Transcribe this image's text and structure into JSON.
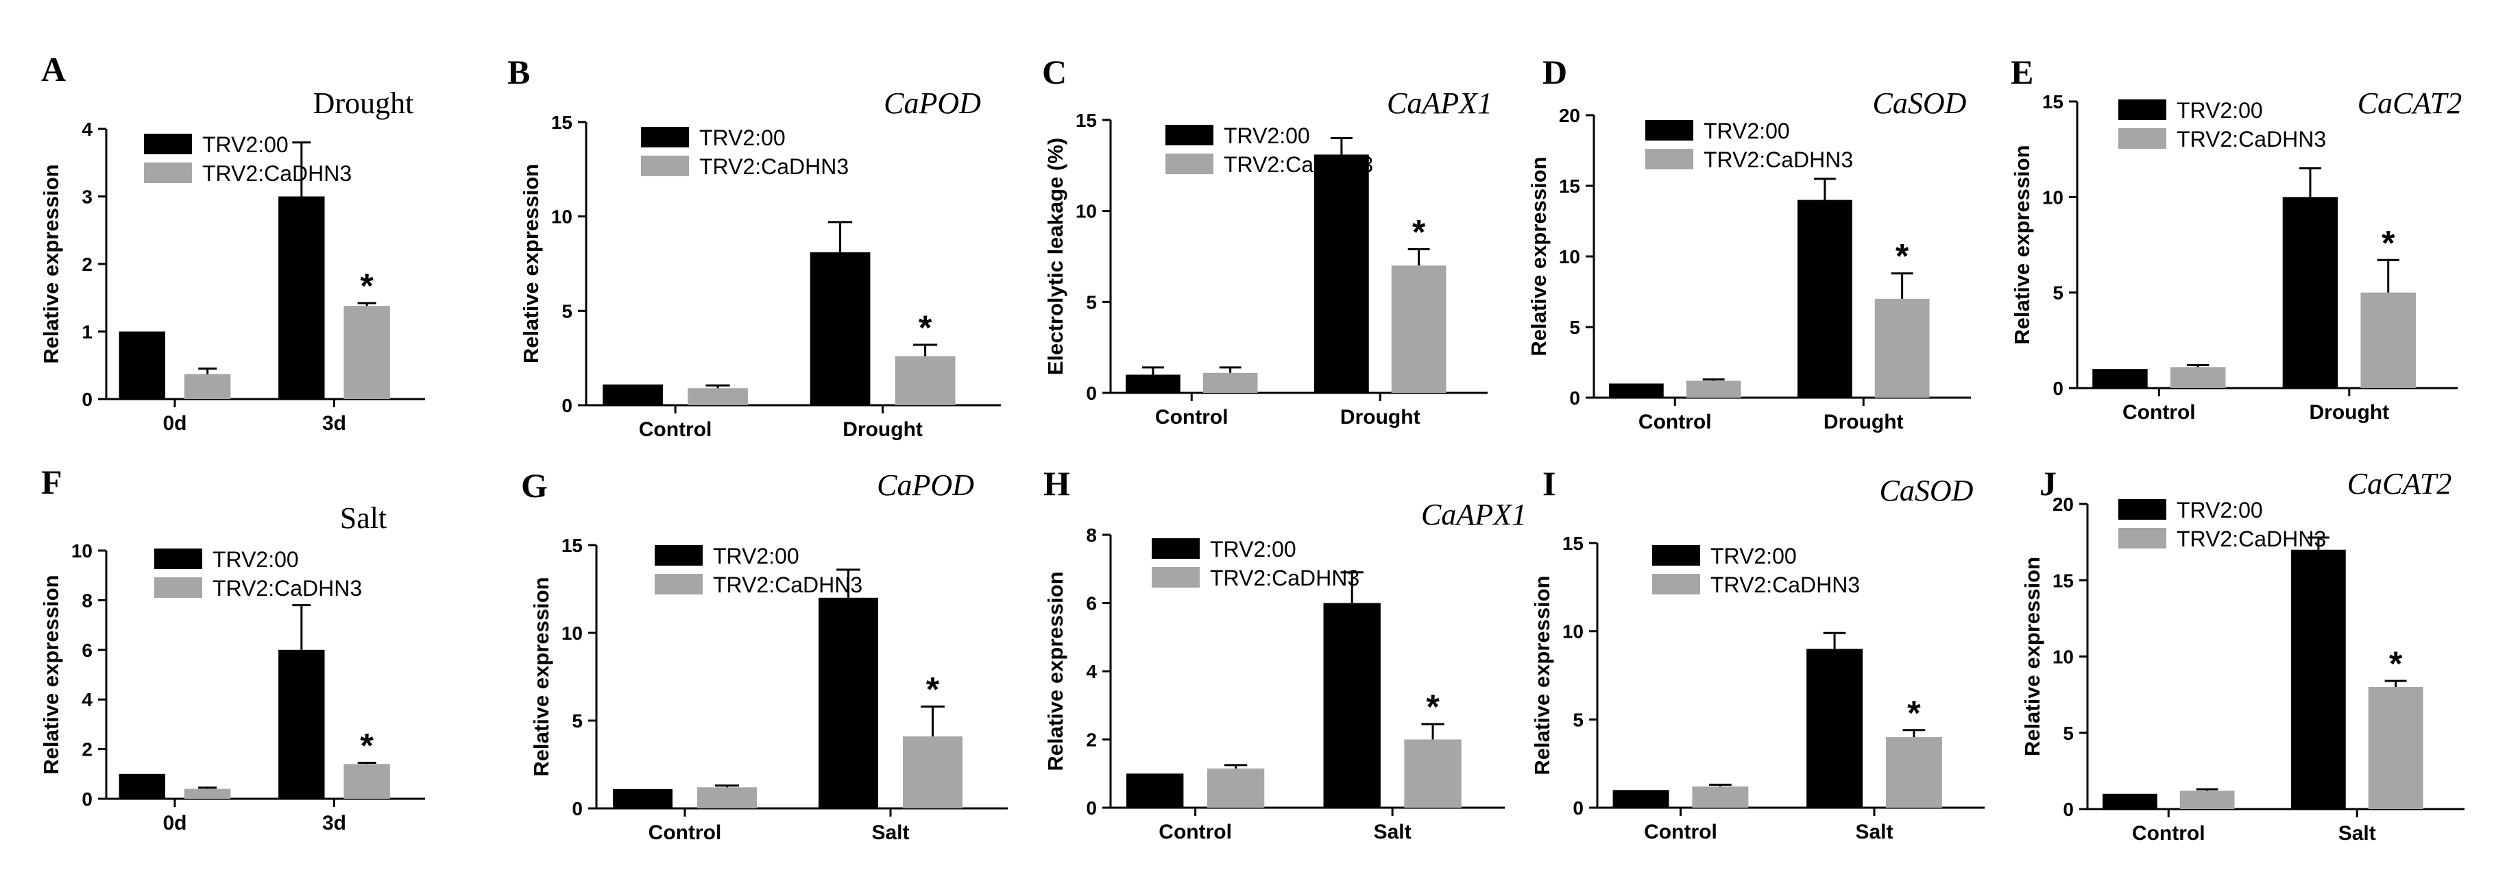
{
  "colors": {
    "series1": "#000000",
    "series2": "#a6a6a6"
  },
  "chart_data": [
    {
      "type": "bar",
      "panel": "A",
      "title": "Drought",
      "title_italic": false,
      "ylabel": "Relative expression",
      "ylim": [
        0,
        4
      ],
      "yticks": [
        0,
        1,
        2,
        3,
        4
      ],
      "categories": [
        "0d",
        "3d"
      ],
      "series": [
        {
          "name": "TRV2:00",
          "values": [
            1.0,
            3.0
          ],
          "errors": [
            0,
            0.8
          ]
        },
        {
          "name": "TRV2:CaDHN3",
          "values": [
            0.37,
            1.38
          ],
          "errors": [
            0.08,
            0.04
          ]
        }
      ],
      "annotations": [
        "",
        "*"
      ],
      "legend": "top-left"
    },
    {
      "type": "bar",
      "panel": "B",
      "title": "CaPOD",
      "title_italic": true,
      "ylabel": "Relative expression",
      "ylim": [
        0,
        15
      ],
      "yticks": [
        0,
        5,
        10,
        15
      ],
      "categories": [
        "Control",
        "Drought"
      ],
      "series": [
        {
          "name": "TRV2:00",
          "values": [
            1.1,
            8.1
          ],
          "errors": [
            0,
            1.6
          ]
        },
        {
          "name": "TRV2:CaDHN3",
          "values": [
            0.9,
            2.6
          ],
          "errors": [
            0.15,
            0.6
          ]
        }
      ],
      "annotations": [
        "",
        "*"
      ],
      "legend": "top-left"
    },
    {
      "type": "bar",
      "panel": "C",
      "title": "CaAPX1",
      "title_italic": true,
      "ylabel": "Electrolytic leakage (%)",
      "ylim": [
        0,
        15
      ],
      "yticks": [
        0,
        5,
        10,
        15
      ],
      "categories": [
        "Control",
        "Drought"
      ],
      "series": [
        {
          "name": "TRV2:00",
          "values": [
            1.0,
            13.1
          ],
          "errors": [
            0.4,
            0.9
          ]
        },
        {
          "name": "TRV2:CaDHN3",
          "values": [
            1.1,
            7.0
          ],
          "errors": [
            0.3,
            0.9
          ]
        }
      ],
      "annotations": [
        "",
        "*"
      ],
      "legend": "top-left"
    },
    {
      "type": "bar",
      "panel": "D",
      "title": "CaSOD",
      "title_italic": true,
      "ylabel": "Relative expression",
      "ylim": [
        0,
        20
      ],
      "yticks": [
        0,
        5,
        10,
        15,
        20
      ],
      "categories": [
        "Control",
        "Drought"
      ],
      "series": [
        {
          "name": "TRV2:00",
          "values": [
            1.0,
            14.0
          ],
          "errors": [
            0,
            1.5
          ]
        },
        {
          "name": "TRV2:CaDHN3",
          "values": [
            1.2,
            7.0
          ],
          "errors": [
            0.1,
            1.8
          ]
        }
      ],
      "annotations": [
        "",
        "*"
      ],
      "legend": "top-left"
    },
    {
      "type": "bar",
      "panel": "E",
      "title": "CaCAT2",
      "title_italic": true,
      "ylabel": "Relative expression",
      "ylim": [
        0,
        15
      ],
      "yticks": [
        0,
        5,
        10,
        15
      ],
      "categories": [
        "Control",
        "Drought"
      ],
      "series": [
        {
          "name": "TRV2:00",
          "values": [
            1.0,
            10.0
          ],
          "errors": [
            0,
            1.5
          ]
        },
        {
          "name": "TRV2:CaDHN3",
          "values": [
            1.1,
            5.0
          ],
          "errors": [
            0.1,
            1.7
          ]
        }
      ],
      "annotations": [
        "",
        "*"
      ],
      "legend": "top-left"
    },
    {
      "type": "bar",
      "panel": "F",
      "title": "Salt",
      "title_italic": false,
      "ylabel": "Relative expression",
      "ylim": [
        0,
        10
      ],
      "yticks": [
        0,
        2,
        4,
        6,
        8,
        10
      ],
      "categories": [
        "0d",
        "3d"
      ],
      "series": [
        {
          "name": "TRV2:00",
          "values": [
            1.0,
            6.0
          ],
          "errors": [
            0,
            1.8
          ]
        },
        {
          "name": "TRV2:CaDHN3",
          "values": [
            0.4,
            1.4
          ],
          "errors": [
            0.05,
            0.05
          ]
        }
      ],
      "annotations": [
        "",
        "*"
      ],
      "legend": "top-left"
    },
    {
      "type": "bar",
      "panel": "G",
      "title": "CaPOD",
      "title_italic": true,
      "ylabel": "Relative expression",
      "ylim": [
        0,
        15
      ],
      "yticks": [
        0,
        5,
        10,
        15
      ],
      "categories": [
        "Control",
        "Salt"
      ],
      "series": [
        {
          "name": "TRV2:00",
          "values": [
            1.1,
            12.0
          ],
          "errors": [
            0,
            1.6
          ]
        },
        {
          "name": "TRV2:CaDHN3",
          "values": [
            1.2,
            4.1
          ],
          "errors": [
            0.1,
            1.7
          ]
        }
      ],
      "annotations": [
        "",
        "*"
      ],
      "legend": "top-left"
    },
    {
      "type": "bar",
      "panel": "H",
      "title": "CaAPX1",
      "title_italic": true,
      "ylabel": "Relative expression",
      "ylim": [
        0,
        8
      ],
      "yticks": [
        0,
        2,
        4,
        6,
        8
      ],
      "categories": [
        "Control",
        "Salt"
      ],
      "series": [
        {
          "name": "TRV2:00",
          "values": [
            1.0,
            6.0
          ],
          "errors": [
            0,
            0.9
          ]
        },
        {
          "name": "TRV2:CaDHN3",
          "values": [
            1.15,
            2.0
          ],
          "errors": [
            0.1,
            0.45
          ]
        }
      ],
      "annotations": [
        "",
        "*"
      ],
      "legend": "top-left"
    },
    {
      "type": "bar",
      "panel": "I",
      "title": "CaSOD",
      "title_italic": true,
      "ylabel": "Relative expression",
      "ylim": [
        0,
        15
      ],
      "yticks": [
        0,
        5,
        10,
        15
      ],
      "categories": [
        "Control",
        "Salt"
      ],
      "series": [
        {
          "name": "TRV2:00",
          "values": [
            1.0,
            9.0
          ],
          "errors": [
            0,
            0.9
          ]
        },
        {
          "name": "TRV2:CaDHN3",
          "values": [
            1.2,
            4.0
          ],
          "errors": [
            0.1,
            0.4
          ]
        }
      ],
      "annotations": [
        "",
        "*"
      ],
      "legend": "top-left"
    },
    {
      "type": "bar",
      "panel": "J",
      "title": "CaCAT2",
      "title_italic": true,
      "ylabel": "Relative expression",
      "ylim": [
        0,
        20
      ],
      "yticks": [
        0,
        5,
        10,
        15,
        20
      ],
      "categories": [
        "Control",
        "Salt"
      ],
      "series": [
        {
          "name": "TRV2:00",
          "values": [
            1.0,
            17.0
          ],
          "errors": [
            0,
            0.8
          ]
        },
        {
          "name": "TRV2:CaDHN3",
          "values": [
            1.2,
            8.0
          ],
          "errors": [
            0.1,
            0.4
          ]
        }
      ],
      "annotations": [
        "",
        "*"
      ],
      "legend": "top-left"
    }
  ]
}
